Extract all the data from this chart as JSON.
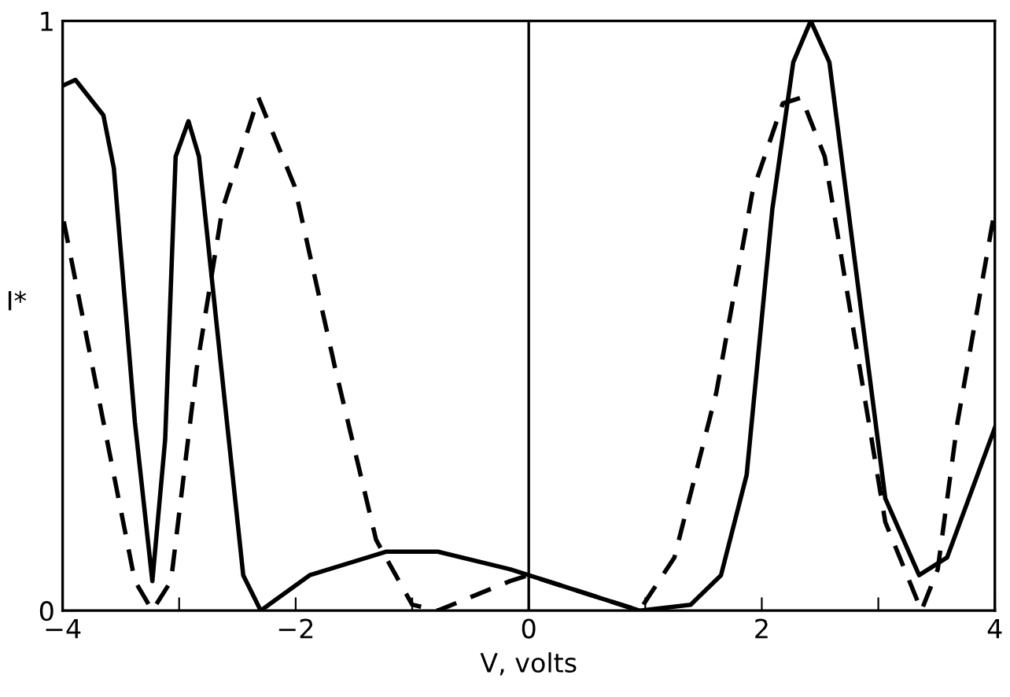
{
  "chart_data": {
    "type": "line",
    "xlabel": "V, volts",
    "ylabel": "I*",
    "xlim": [
      -4,
      4
    ],
    "ylim": [
      0,
      1
    ],
    "xticks": [
      -4,
      {
        "value": -3,
        "label": null
      },
      -2,
      {
        "value": -1,
        "label": null
      },
      0,
      {
        "value": 1,
        "label": null
      },
      2,
      {
        "value": 3,
        "label": null
      },
      4
    ],
    "yticks": [
      0,
      1
    ],
    "grid": false,
    "legend": false,
    "marker": "none",
    "ref_lines": [
      {
        "axis": "x",
        "value": 0,
        "color": "#000000"
      }
    ],
    "series": [
      {
        "color": "#000000",
        "line_style": "solid",
        "x": [
          -4,
          -3.89,
          -3.65,
          -3.56,
          -3.38,
          -3.23,
          -3.12,
          -3.03,
          -2.92,
          -2.83,
          -2.59,
          -2.45,
          -2.3,
          -1.88,
          -1.22,
          -0.78,
          -0.16,
          0,
          0.95,
          1.39,
          1.65,
          1.87,
          2.09,
          2.27,
          2.42,
          2.58,
          2.8,
          3.06,
          3.35,
          3.59,
          4.0
        ],
        "values": [
          0.89,
          0.9,
          0.84,
          0.75,
          0.32,
          0.05,
          0.29,
          0.77,
          0.83,
          0.77,
          0.32,
          0.06,
          0,
          0.06,
          0.1,
          0.1,
          0.07,
          0.06,
          0,
          0.01,
          0.06,
          0.23,
          0.68,
          0.93,
          1.0,
          0.93,
          0.59,
          0.19,
          0.06,
          0.09,
          0.31
        ]
      },
      {
        "color": "#000000",
        "line_style": "dashed",
        "x": [
          -3.99,
          -3.65,
          -3.38,
          -3.23,
          -3.07,
          -2.85,
          -2.63,
          -2.32,
          -2.01,
          -1.66,
          -1.31,
          -1.0,
          -0.78,
          -0.16,
          0,
          0.95,
          1.25,
          1.61,
          1.92,
          2.18,
          2.34,
          2.54,
          2.8,
          3.06,
          3.37,
          3.51,
          3.68,
          4.0
        ],
        "values": [
          0.66,
          0.32,
          0.05,
          0,
          0.05,
          0.41,
          0.68,
          0.87,
          0.72,
          0.41,
          0.12,
          0.01,
          0,
          0.05,
          0.06,
          0,
          0.09,
          0.37,
          0.71,
          0.86,
          0.87,
          0.77,
          0.46,
          0.15,
          0,
          0.07,
          0.32,
          0.68
        ]
      }
    ]
  }
}
